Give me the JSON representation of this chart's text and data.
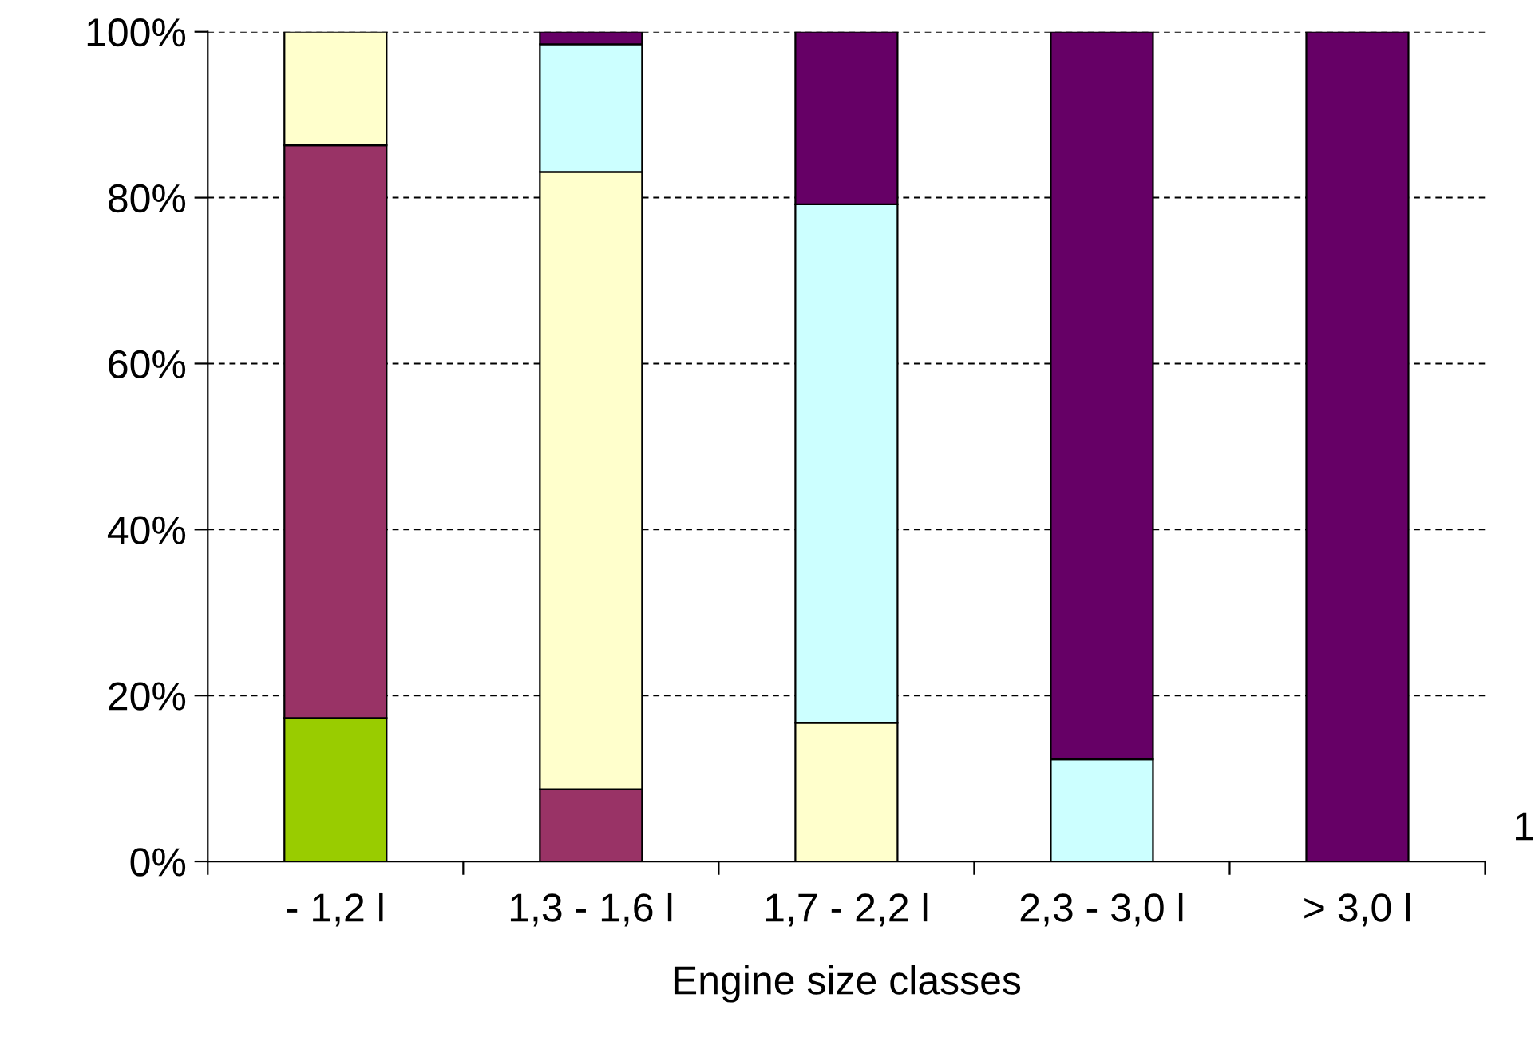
{
  "chart_data": {
    "type": "bar",
    "stacked": true,
    "xlabel": "Engine size classes",
    "categories": [
      "- 1,2 l",
      "1,3 - 1,6 l",
      "1,7 - 2,2 l",
      "2,3 - 3,0 l",
      "> 3,0 l"
    ],
    "series": [
      {
        "color": "#99cc00",
        "values": [
          17.3,
          null,
          null,
          null,
          null
        ]
      },
      {
        "color": "#993366",
        "values": [
          69,
          8.7,
          null,
          null,
          null
        ]
      },
      {
        "color": "#ffffcc",
        "values": [
          13.7,
          74.4,
          16.7,
          null,
          null
        ]
      },
      {
        "color": "#ccffff",
        "values": [
          null,
          15.4,
          62.5,
          12.3,
          null
        ]
      },
      {
        "color": "#660066",
        "values": [
          null,
          1.5,
          20.8,
          87.7,
          100
        ]
      }
    ],
    "ylim": [
      0,
      100
    ],
    "yticks": [
      {
        "value": 0,
        "label": "0%"
      },
      {
        "value": 20,
        "label": "20%"
      },
      {
        "value": 40,
        "label": "40%"
      },
      {
        "value": 60,
        "label": "60%"
      },
      {
        "value": 80,
        "label": "80%"
      },
      {
        "value": 100,
        "label": "100%"
      }
    ],
    "grid": "y",
    "annotations": [
      "1"
    ]
  }
}
